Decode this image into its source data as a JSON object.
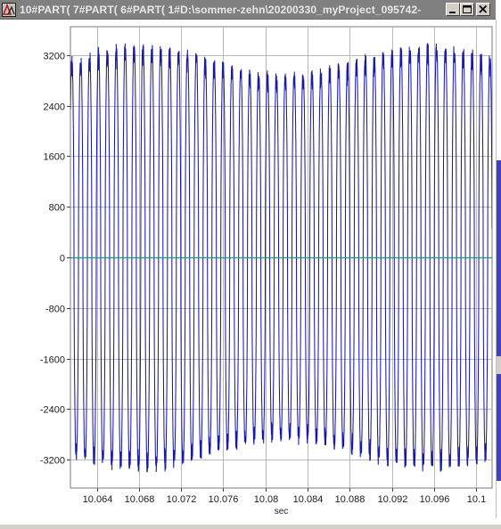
{
  "window": {
    "title": "10#PART( 7#PART( 6#PART( 1#D:\\sommer-zehn\\20200330_myProject_095742-",
    "icon": "app-logo-icon",
    "controls": {
      "minimize": "minimize-icon",
      "maximize": "maximize-icon",
      "close": "close-icon"
    }
  },
  "colors": {
    "titlebar": "#808080",
    "signal": "#1a1aa8",
    "zero_line": "#1e9a6e",
    "grid": "#b8b8b8",
    "axis_text": "#202020"
  },
  "chart_data": {
    "type": "line",
    "xlabel": "sec",
    "ylabel": "",
    "xlim": [
      10.0615,
      10.1015
    ],
    "ylim": [
      -3650,
      3650
    ],
    "x_ticks": [
      10.064,
      10.068,
      10.072,
      10.076,
      10.08,
      10.084,
      10.088,
      10.092,
      10.096,
      10.1
    ],
    "x_tick_labels": [
      "10.064",
      "10.068",
      "10.072",
      "10.076",
      "10.08",
      "10.084",
      "10.088",
      "10.092",
      "10.096",
      "10.1"
    ],
    "y_ticks": [
      3200,
      2400,
      1600,
      800,
      0,
      -800,
      -1600,
      -2400,
      -3200
    ],
    "y_tick_labels": [
      "3200",
      "2400",
      "1600",
      "800",
      "0",
      "-800",
      "-1600",
      "-2400",
      "-3200"
    ],
    "grid": true,
    "series": [
      {
        "signal_frequency_hz": 1185,
        "peak_amplitude": 3450,
        "start_x": 10.0615,
        "end_x": 10.1015
      }
    ]
  }
}
